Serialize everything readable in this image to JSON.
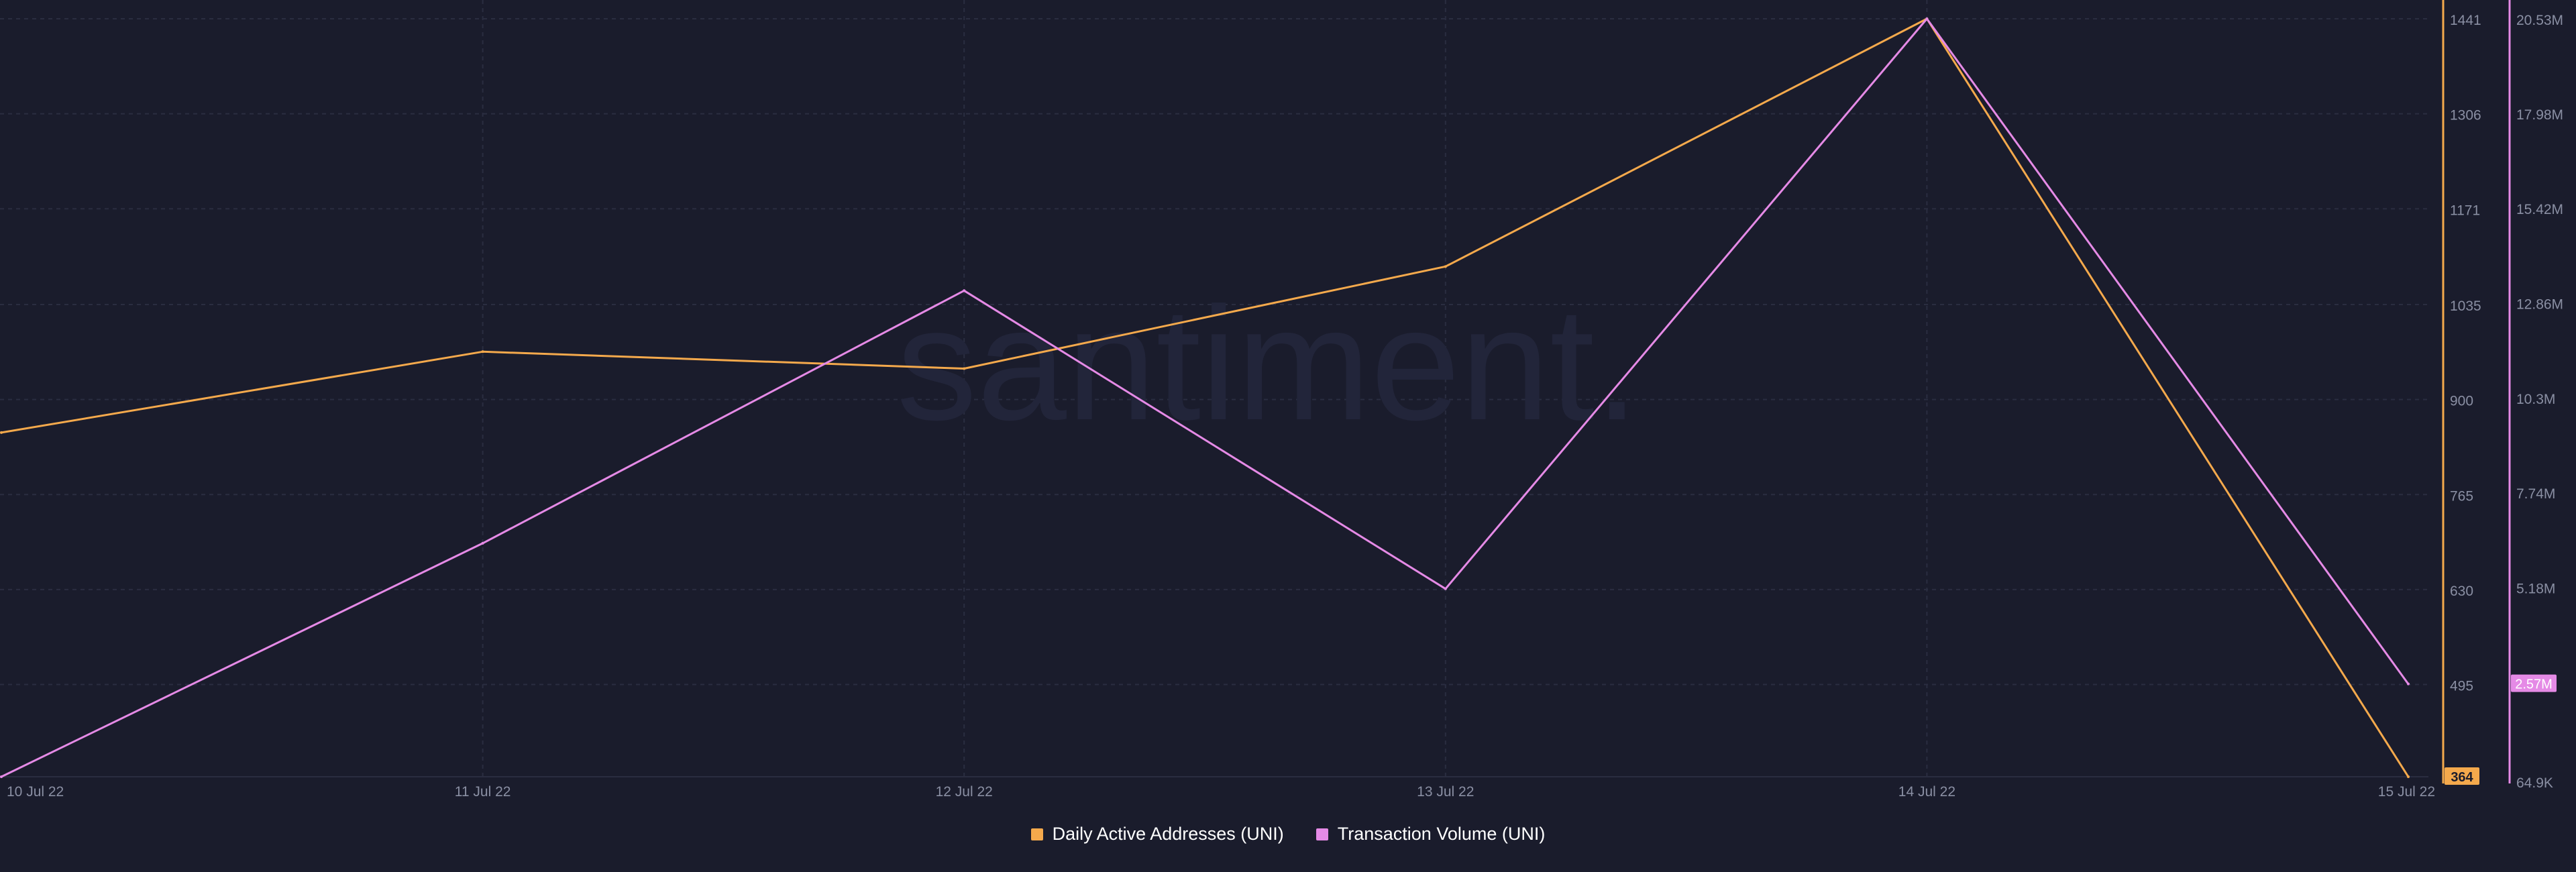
{
  "watermark": "santiment.",
  "colors": {
    "background": "#1a1c2c",
    "grid": "#2a2d40",
    "left_axis": "#f4a94c",
    "right_axis": "#e58ae6",
    "tick_text": "#8a8fa3"
  },
  "chart_data": {
    "type": "line",
    "x": [
      "10 Jul 22",
      "11 Jul 22",
      "12 Jul 22",
      "13 Jul 22",
      "14 Jul 22",
      "15 Jul 22"
    ],
    "series": [
      {
        "name": "Daily Active Addresses (UNI)",
        "axis": "left",
        "color": "#f4a94c",
        "values": [
          853,
          968,
          944,
          1089,
          1441,
          364
        ]
      },
      {
        "name": "Transaction Volume (UNI)",
        "axis": "right",
        "color": "#e58ae6",
        "values": [
          64900,
          6370000,
          13190000,
          5140000,
          20530000,
          2570000
        ]
      }
    ],
    "y_left": {
      "ticks": [
        "1441",
        "1306",
        "1171",
        "1035",
        "900",
        "765",
        "630",
        "495"
      ],
      "tick_values": [
        1441,
        1306,
        1171,
        1035,
        900,
        765,
        630,
        495
      ],
      "ylim": [
        364,
        1441
      ],
      "last_value_label": "364"
    },
    "y_right": {
      "ticks": [
        "20.53M",
        "17.98M",
        "15.42M",
        "12.86M",
        "10.3M",
        "7.74M",
        "5.18M",
        "64.9K"
      ],
      "tick_values": [
        20530000,
        17980000,
        15420000,
        12860000,
        10300000,
        7740000,
        5180000,
        64900
      ],
      "ylim": [
        64900,
        20530000
      ],
      "last_value_label": "2.57M"
    },
    "grid": true,
    "legend_position": "bottom-center"
  }
}
